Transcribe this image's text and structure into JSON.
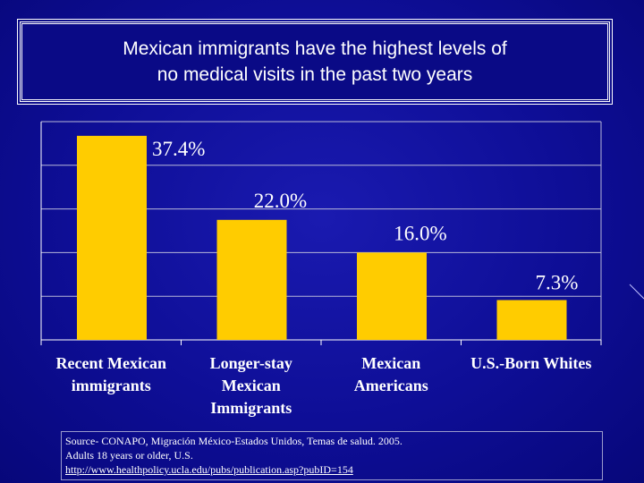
{
  "slide": {
    "title_line1": "Mexican immigrants have the highest levels of",
    "title_line2": "no medical visits in the past two years",
    "source_line1": "Source- CONAPO, Migración México-Estados Unidos, Temas de salud. 2005.",
    "source_line2": "Adults 18 years or older, U.S.",
    "source_link": "http://www.healthpolicy.ucla.edu/pubs/publication.asp?pubID=154"
  },
  "colors": {
    "background": "#0e0e96",
    "bar": "#ffcc00",
    "axis": "#ffffff",
    "text": "#ffffff"
  },
  "chart_data": {
    "type": "bar",
    "title": "Mexican immigrants have the highest levels of no medical visits in the past two years",
    "categories": [
      [
        "Recent Mexican",
        "immigrants"
      ],
      [
        "Longer-stay",
        "Mexican",
        "Immigrants"
      ],
      [
        "Mexican",
        "Americans"
      ],
      [
        "U.S.-Born Whites"
      ]
    ],
    "values": [
      37.4,
      22.0,
      16.0,
      7.3
    ],
    "data_labels": [
      "37.4%",
      "22.0%",
      "16.0%",
      "7.3%"
    ],
    "ylim": [
      0,
      40
    ],
    "ytick_step": 8,
    "grid": true,
    "xlabel": "",
    "ylabel": ""
  }
}
